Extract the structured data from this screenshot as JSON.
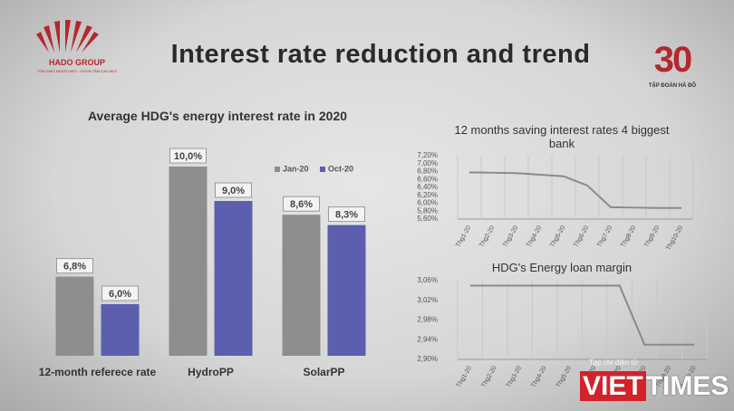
{
  "header": {
    "logo": "HADO GROUP",
    "logo_tagline": "TÔN GIÁO NGƯỜI MỚI - VƯƠN TẦM CAO MỚI",
    "title": "Interest rate reduction and trend",
    "badge_number": "30",
    "badge_text": "TẬP ĐOÀN HÀ ĐÔ"
  },
  "watermark": {
    "caption": "Tạp chí điện tử",
    "brand_a": "VIET",
    "brand_b": "TIMES"
  },
  "chart_data": [
    {
      "type": "bar",
      "title": "Average HDG's energy interest rate in 2020",
      "categories": [
        "12-month referece rate",
        "HydroPP",
        "SolarPP"
      ],
      "series": [
        {
          "name": "Jan-20",
          "color": "#8e8d8f",
          "values": [
            6.8,
            10.0,
            8.6
          ],
          "value_labels": [
            "6,8%",
            "10,0%",
            "8,6%"
          ]
        },
        {
          "name": "Oct-20",
          "color": "#5b5fae",
          "values": [
            6.0,
            9.0,
            8.3
          ],
          "value_labels": [
            "6,0%",
            "9,0%",
            "8,3%"
          ]
        }
      ],
      "ylim": [
        4.5,
        10.5
      ],
      "legend": "top-right"
    },
    {
      "type": "line",
      "title": "12 months saving interest rates 4 biggest bank",
      "categories": [
        "Thg1-20",
        "Thg2-20",
        "Thg3-20",
        "Thg4-20",
        "Thg5-20",
        "Thg6-20",
        "Thg7-20",
        "Thg8-20",
        "Thg9-20",
        "Thg10-20"
      ],
      "values": [
        6.78,
        6.77,
        6.76,
        6.72,
        6.68,
        6.45,
        5.9,
        5.89,
        5.88,
        5.88
      ],
      "color": "#8a8a8a",
      "ylim": [
        5.6,
        7.2
      ],
      "yticks": [
        {
          "value": 5.6,
          "label": "5,60%"
        },
        {
          "value": 5.8,
          "label": "5,80%"
        },
        {
          "value": 6.0,
          "label": "6,00%"
        },
        {
          "value": 6.2,
          "label": "6,20%"
        },
        {
          "value": 6.4,
          "label": "6,40%"
        },
        {
          "value": 6.6,
          "label": "6,60%"
        },
        {
          "value": 6.8,
          "label": "6,80%"
        },
        {
          "value": 7.0,
          "label": "7,00%"
        },
        {
          "value": 7.2,
          "label": "7,20%"
        }
      ],
      "grid": "vertical"
    },
    {
      "type": "line",
      "title": "HDG's Energy loan margin",
      "categories": [
        "Thg1-20",
        "Thg2-20",
        "Thg3-20",
        "Thg4-20",
        "Thg5-20",
        "Thg6-20",
        "Thg7-20",
        "Thg8-20",
        "Thg9-20",
        "Thg10-20"
      ],
      "values": [
        3.05,
        3.05,
        3.05,
        3.05,
        3.05,
        3.05,
        3.05,
        2.93,
        2.93,
        2.93
      ],
      "color": "#8a8a8a",
      "ylim": [
        2.9,
        3.06
      ],
      "yticks": [
        {
          "value": 2.9,
          "label": "2,90%"
        },
        {
          "value": 2.94,
          "label": "2,94%"
        },
        {
          "value": 2.98,
          "label": "2,98%"
        },
        {
          "value": 3.02,
          "label": "3,02%"
        },
        {
          "value": 3.06,
          "label": "3,06%"
        }
      ],
      "grid": "vertical"
    }
  ]
}
